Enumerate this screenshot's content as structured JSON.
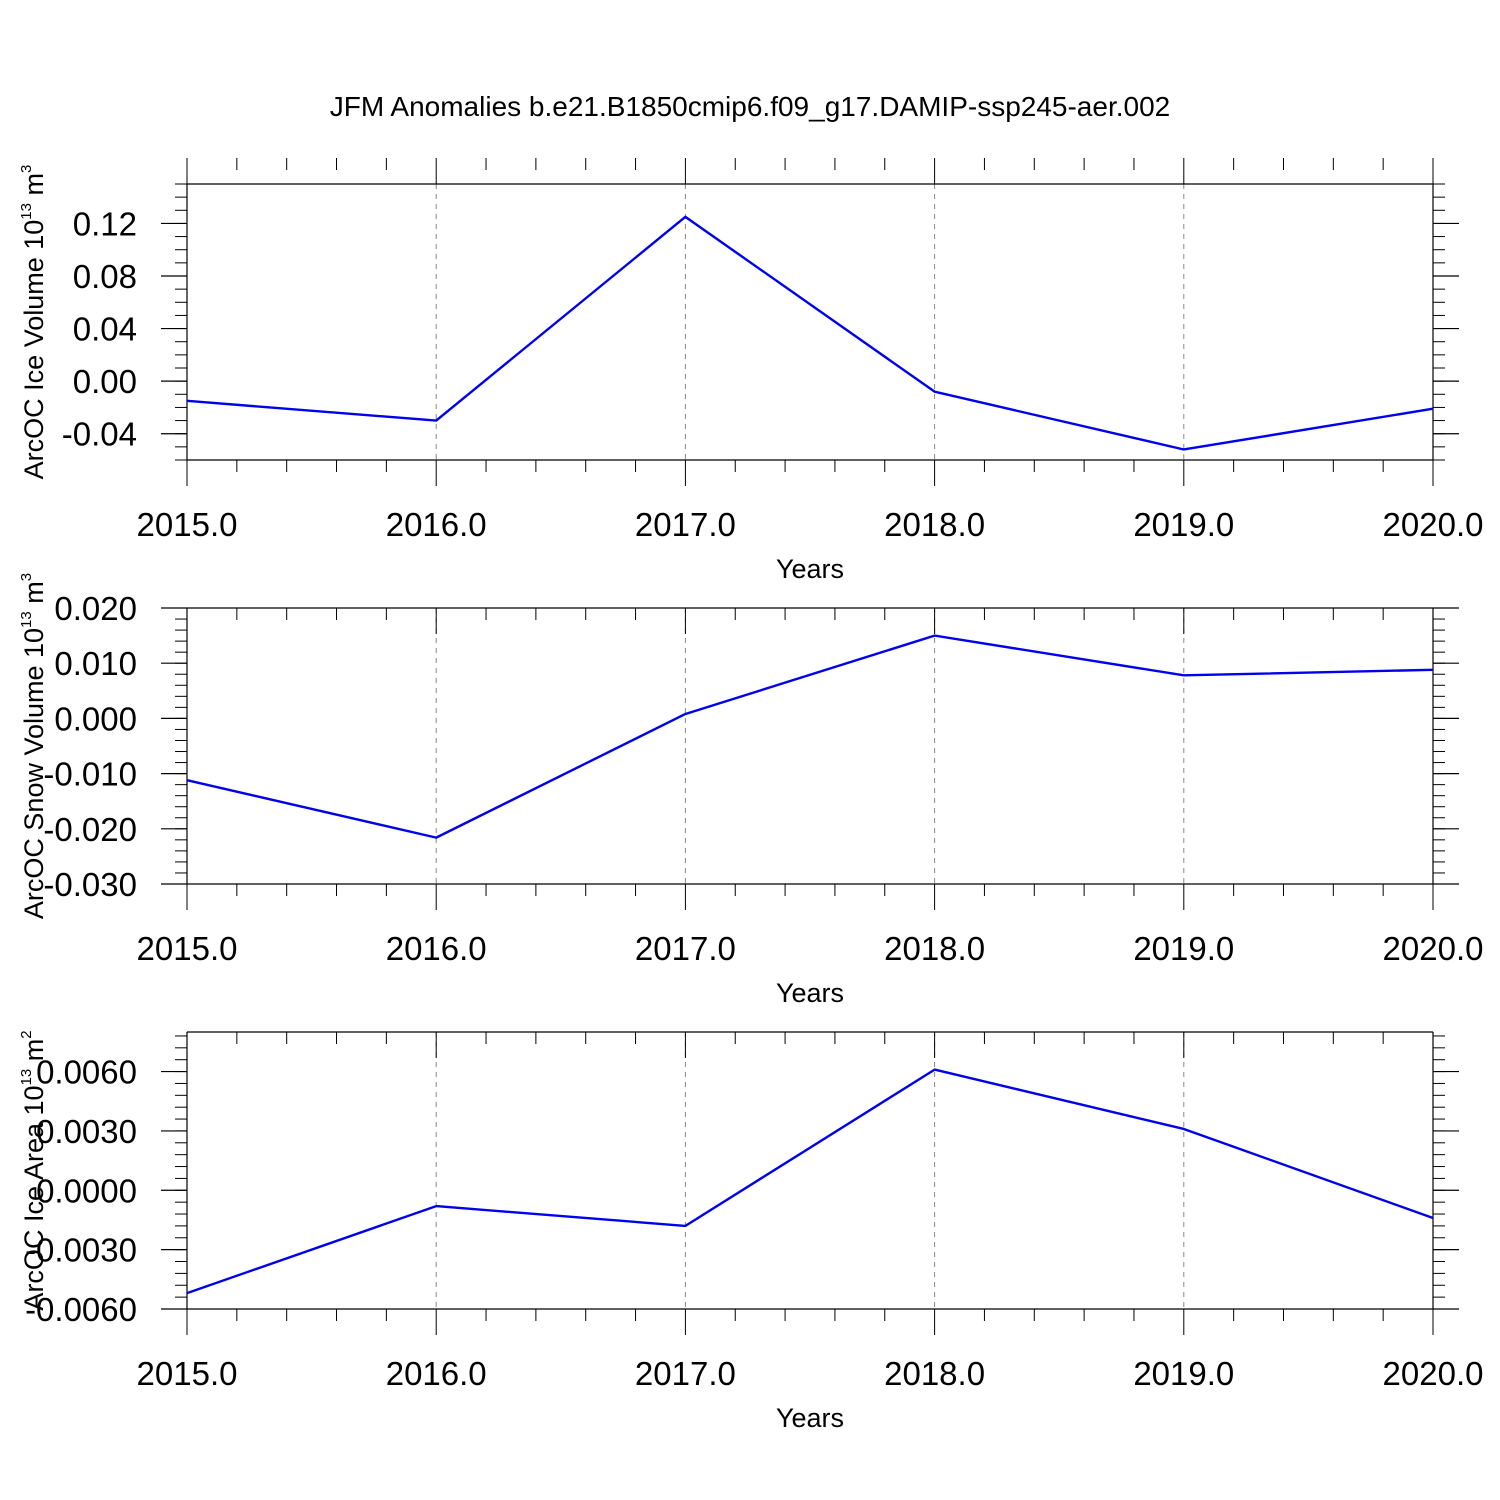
{
  "figure": {
    "title": "JFM Anomalies b.e21.B1850cmip6.f09_g17.DAMIP-ssp245-aer.002"
  },
  "chart_data": [
    {
      "type": "line",
      "ylabel": "ArcOC Ice Volume 10",
      "ylabel_sup": "13",
      "ylabel_unit": " m",
      "ylabel_unit_sup": "3",
      "xlabel": "Years",
      "xlim": [
        2015,
        2020
      ],
      "ylim": [
        -0.06,
        0.15
      ],
      "x_tick_values": [
        2015,
        2016,
        2017,
        2018,
        2019,
        2020
      ],
      "x_tick_labels": [
        "2015.0",
        "2016.0",
        "2017.0",
        "2018.0",
        "2019.0",
        "2020.0"
      ],
      "y_tick_values": [
        -0.04,
        0.0,
        0.04,
        0.08,
        0.12
      ],
      "y_tick_labels": [
        "-0.04",
        "0.00",
        "0.04",
        "0.08",
        "0.12"
      ],
      "y_minor_step": 0.01,
      "grid": "vertical dashed",
      "series": [
        {
          "color": "#0000ee",
          "x": [
            2015,
            2016,
            2017,
            2018,
            2019,
            2020
          ],
          "y": [
            -0.015,
            -0.03,
            0.125,
            -0.008,
            -0.052,
            -0.021
          ]
        }
      ]
    },
    {
      "type": "line",
      "ylabel": "ArcOC Snow Volume 10",
      "ylabel_sup": "13",
      "ylabel_unit": " m",
      "ylabel_unit_sup": "3",
      "xlabel": "Years",
      "xlim": [
        2015,
        2020
      ],
      "ylim": [
        -0.03,
        0.02
      ],
      "x_tick_values": [
        2015,
        2016,
        2017,
        2018,
        2019,
        2020
      ],
      "x_tick_labels": [
        "2015.0",
        "2016.0",
        "2017.0",
        "2018.0",
        "2019.0",
        "2020.0"
      ],
      "y_tick_values": [
        -0.03,
        -0.02,
        -0.01,
        0.0,
        0.01,
        0.02
      ],
      "y_tick_labels": [
        "-0.030",
        "-0.020",
        "-0.010",
        "0.000",
        "0.010",
        "0.020"
      ],
      "y_minor_step": 0.002,
      "grid": "vertical dashed",
      "series": [
        {
          "color": "#0000ee",
          "x": [
            2015,
            2016,
            2017,
            2018,
            2019,
            2020
          ],
          "y": [
            -0.0112,
            -0.0216,
            0.0008,
            0.015,
            0.0078,
            0.0088
          ]
        }
      ]
    },
    {
      "type": "line",
      "ylabel": "ArcOC Ice Area 10",
      "ylabel_sup": "13",
      "ylabel_unit": " m",
      "ylabel_unit_sup": "2",
      "xlabel": "Years",
      "xlim": [
        2015,
        2020
      ],
      "ylim": [
        -0.006,
        0.008
      ],
      "x_tick_values": [
        2015,
        2016,
        2017,
        2018,
        2019,
        2020
      ],
      "x_tick_labels": [
        "2015.0",
        "2016.0",
        "2017.0",
        "2018.0",
        "2019.0",
        "2020.0"
      ],
      "y_tick_values": [
        -0.006,
        -0.003,
        0.0,
        0.003,
        0.006
      ],
      "y_tick_labels": [
        "-0.0060",
        "-0.0030",
        "0.0000",
        "0.0030",
        "0.0060"
      ],
      "y_minor_step": 0.0006,
      "grid": "vertical dashed",
      "series": [
        {
          "color": "#0000ee",
          "x": [
            2015,
            2016,
            2017,
            2018,
            2019,
            2020
          ],
          "y": [
            -0.0052,
            -0.0008,
            -0.0018,
            0.0061,
            0.0031,
            -0.0014
          ]
        }
      ]
    }
  ]
}
